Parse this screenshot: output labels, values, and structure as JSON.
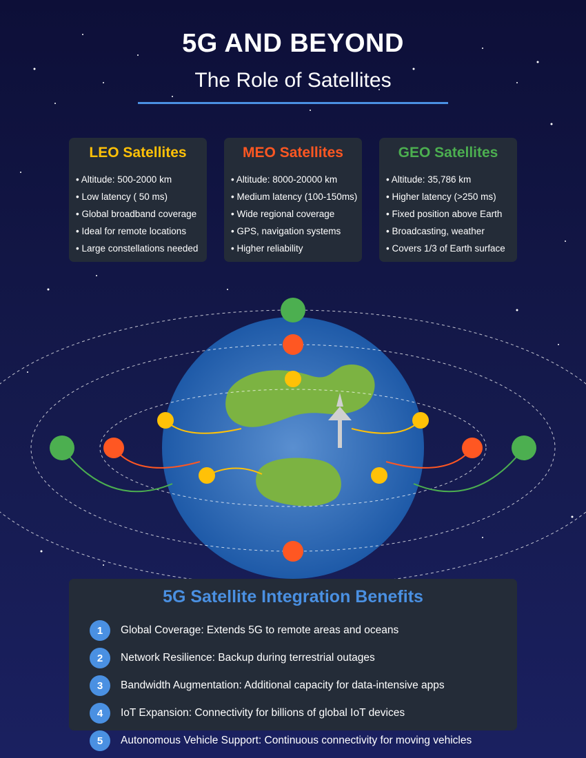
{
  "header": {
    "title": "5G AND BEYOND",
    "subtitle": "The Role of Satellites"
  },
  "colors": {
    "leo": "#ffc107",
    "meo": "#ff5722",
    "geo": "#4caf50",
    "accent": "#4a90e2",
    "earth": "#2d6db5",
    "land": "#7cb342"
  },
  "cards": [
    {
      "title": "LEO Satellites",
      "color": "#ffc107",
      "items": [
        "Altitude: 500-2000 km",
        "Low latency ( 50 ms)",
        "Global broadband coverage",
        "Ideal for remote locations",
        "Large constellations needed"
      ]
    },
    {
      "title": "MEO Satellites",
      "color": "#ff5722",
      "items": [
        "Altitude: 8000-20000 km",
        "Medium latency (100-150ms)",
        "Wide regional coverage",
        "GPS, navigation systems",
        "Higher reliability"
      ]
    },
    {
      "title": "GEO Satellites",
      "color": "#4caf50",
      "items": [
        "Altitude: 35,786 km",
        "Higher latency (>250 ms)",
        "Fixed position above Earth",
        "Broadcasting, weather",
        "Covers 1/3 of Earth surface"
      ]
    }
  ],
  "diagram": {
    "icons": [
      "earth-globe",
      "satellite-dot",
      "signal-link",
      "ground-antenna-arrow"
    ]
  },
  "benefits": {
    "title": "5G Satellite Integration Benefits",
    "items": [
      {
        "number": "1",
        "text": "Global Coverage: Extends 5G to remote areas and oceans"
      },
      {
        "number": "2",
        "text": "Network Resilience: Backup during terrestrial outages"
      },
      {
        "number": "3",
        "text": "Bandwidth Augmentation: Additional capacity for data-intensive apps"
      },
      {
        "number": "4",
        "text": "IoT Expansion: Connectivity for billions of global IoT devices"
      },
      {
        "number": "5",
        "text": "Autonomous Vehicle Support: Continuous connectivity for moving vehicles"
      }
    ]
  }
}
